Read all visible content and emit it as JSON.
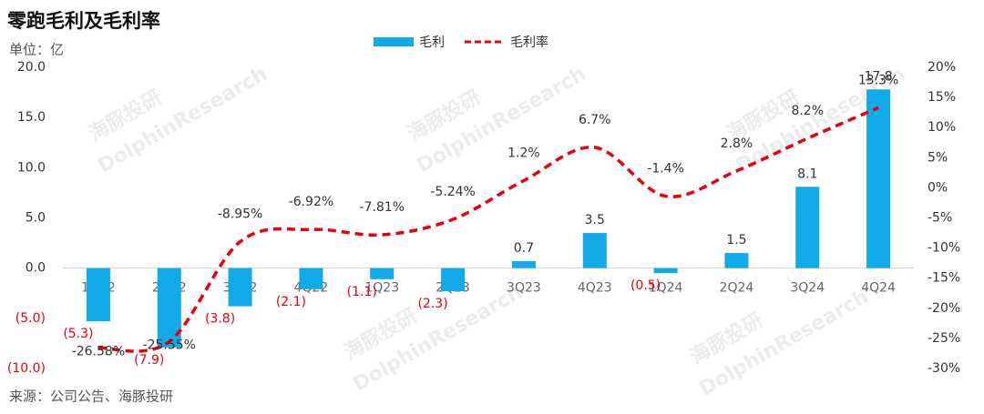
{
  "chart_data": {
    "type": "bar-line",
    "title": "零跑毛利及毛利率",
    "unit_label": "单位：亿",
    "source": "来源：公司公告、海豚投研",
    "watermark": [
      "海豚投研",
      "DolphinResearch"
    ],
    "categories": [
      "1Q22",
      "2Q22",
      "3Q22",
      "4Q22",
      "1Q23",
      "2Q23",
      "3Q23",
      "4Q23",
      "1Q24",
      "2Q24",
      "3Q24",
      "4Q24"
    ],
    "series": [
      {
        "name": "毛利",
        "type": "bar",
        "color": "#12a9e8",
        "values": [
          -5.3,
          -7.9,
          -3.8,
          -2.1,
          -1.1,
          -2.3,
          0.7,
          3.5,
          -0.5,
          1.5,
          8.1,
          17.8
        ],
        "value_labels": [
          "(5.3)",
          "(7.9)",
          "(3.8)",
          "(2.1)",
          "(1.1)",
          "(2.3)",
          "0.7",
          "3.5",
          "(0.5)",
          "1.5",
          "8.1",
          "17.8"
        ]
      },
      {
        "name": "毛利率",
        "type": "line",
        "axis": "y2",
        "color": "#e8000b",
        "values": [
          -26.58,
          -25.55,
          -8.95,
          -6.92,
          -7.81,
          -5.24,
          1.2,
          6.7,
          -1.4,
          2.8,
          8.2,
          13.3
        ],
        "value_labels": [
          "-26.58%",
          "-25.55%",
          "-8.95%",
          "-6.92%",
          "-7.81%",
          "-5.24%",
          "1.2%",
          "6.7%",
          "-1.4%",
          "2.8%",
          "8.2%",
          "13.3%"
        ]
      }
    ],
    "ylim": [
      -10,
      20
    ],
    "yticks": [
      {
        "value": -10,
        "label": "(10.0)"
      },
      {
        "value": -5,
        "label": "(5.0)"
      },
      {
        "value": 0,
        "label": "0.0"
      },
      {
        "value": 5,
        "label": "5.0"
      },
      {
        "value": 10,
        "label": "10.0"
      },
      {
        "value": 15,
        "label": "15.0"
      },
      {
        "value": 20,
        "label": "20.0"
      }
    ],
    "y2lim": [
      -30,
      20
    ],
    "y2ticks": [
      {
        "value": -30,
        "label": "-30%"
      },
      {
        "value": -25,
        "label": "-25%"
      },
      {
        "value": -20,
        "label": "-20%"
      },
      {
        "value": -15,
        "label": "-15%"
      },
      {
        "value": -10,
        "label": "-10%"
      },
      {
        "value": -5,
        "label": "-5%"
      },
      {
        "value": 0,
        "label": "0%"
      },
      {
        "value": 5,
        "label": "5%"
      },
      {
        "value": 10,
        "label": "10%"
      },
      {
        "value": 15,
        "label": "15%"
      },
      {
        "value": 20,
        "label": "20%"
      }
    ],
    "negative_label_color": "#e8000b",
    "legend": "top"
  }
}
